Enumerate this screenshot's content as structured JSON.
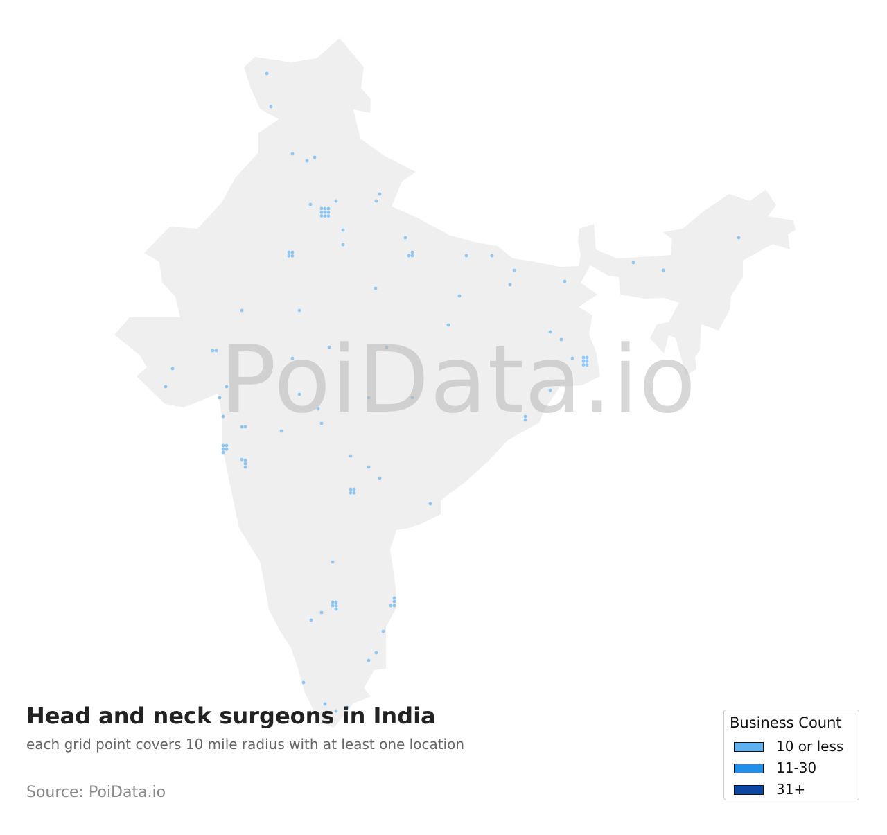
{
  "title": "Head and neck surgeons in India",
  "subtitle": "each grid point covers 10 mile radius with at least one location",
  "source": "Source: PoiData.io",
  "watermark": "PoiData.io",
  "colors": {
    "land": "#efefef",
    "dot": "#8ec6f3"
  },
  "legend": {
    "title": "Business Count",
    "items": [
      {
        "label": "10 or less",
        "color": "#5fb1f0"
      },
      {
        "label": "11-30",
        "color": "#1e90ec"
      },
      {
        "label": "31+",
        "color": "#0d47a1"
      }
    ]
  }
}
